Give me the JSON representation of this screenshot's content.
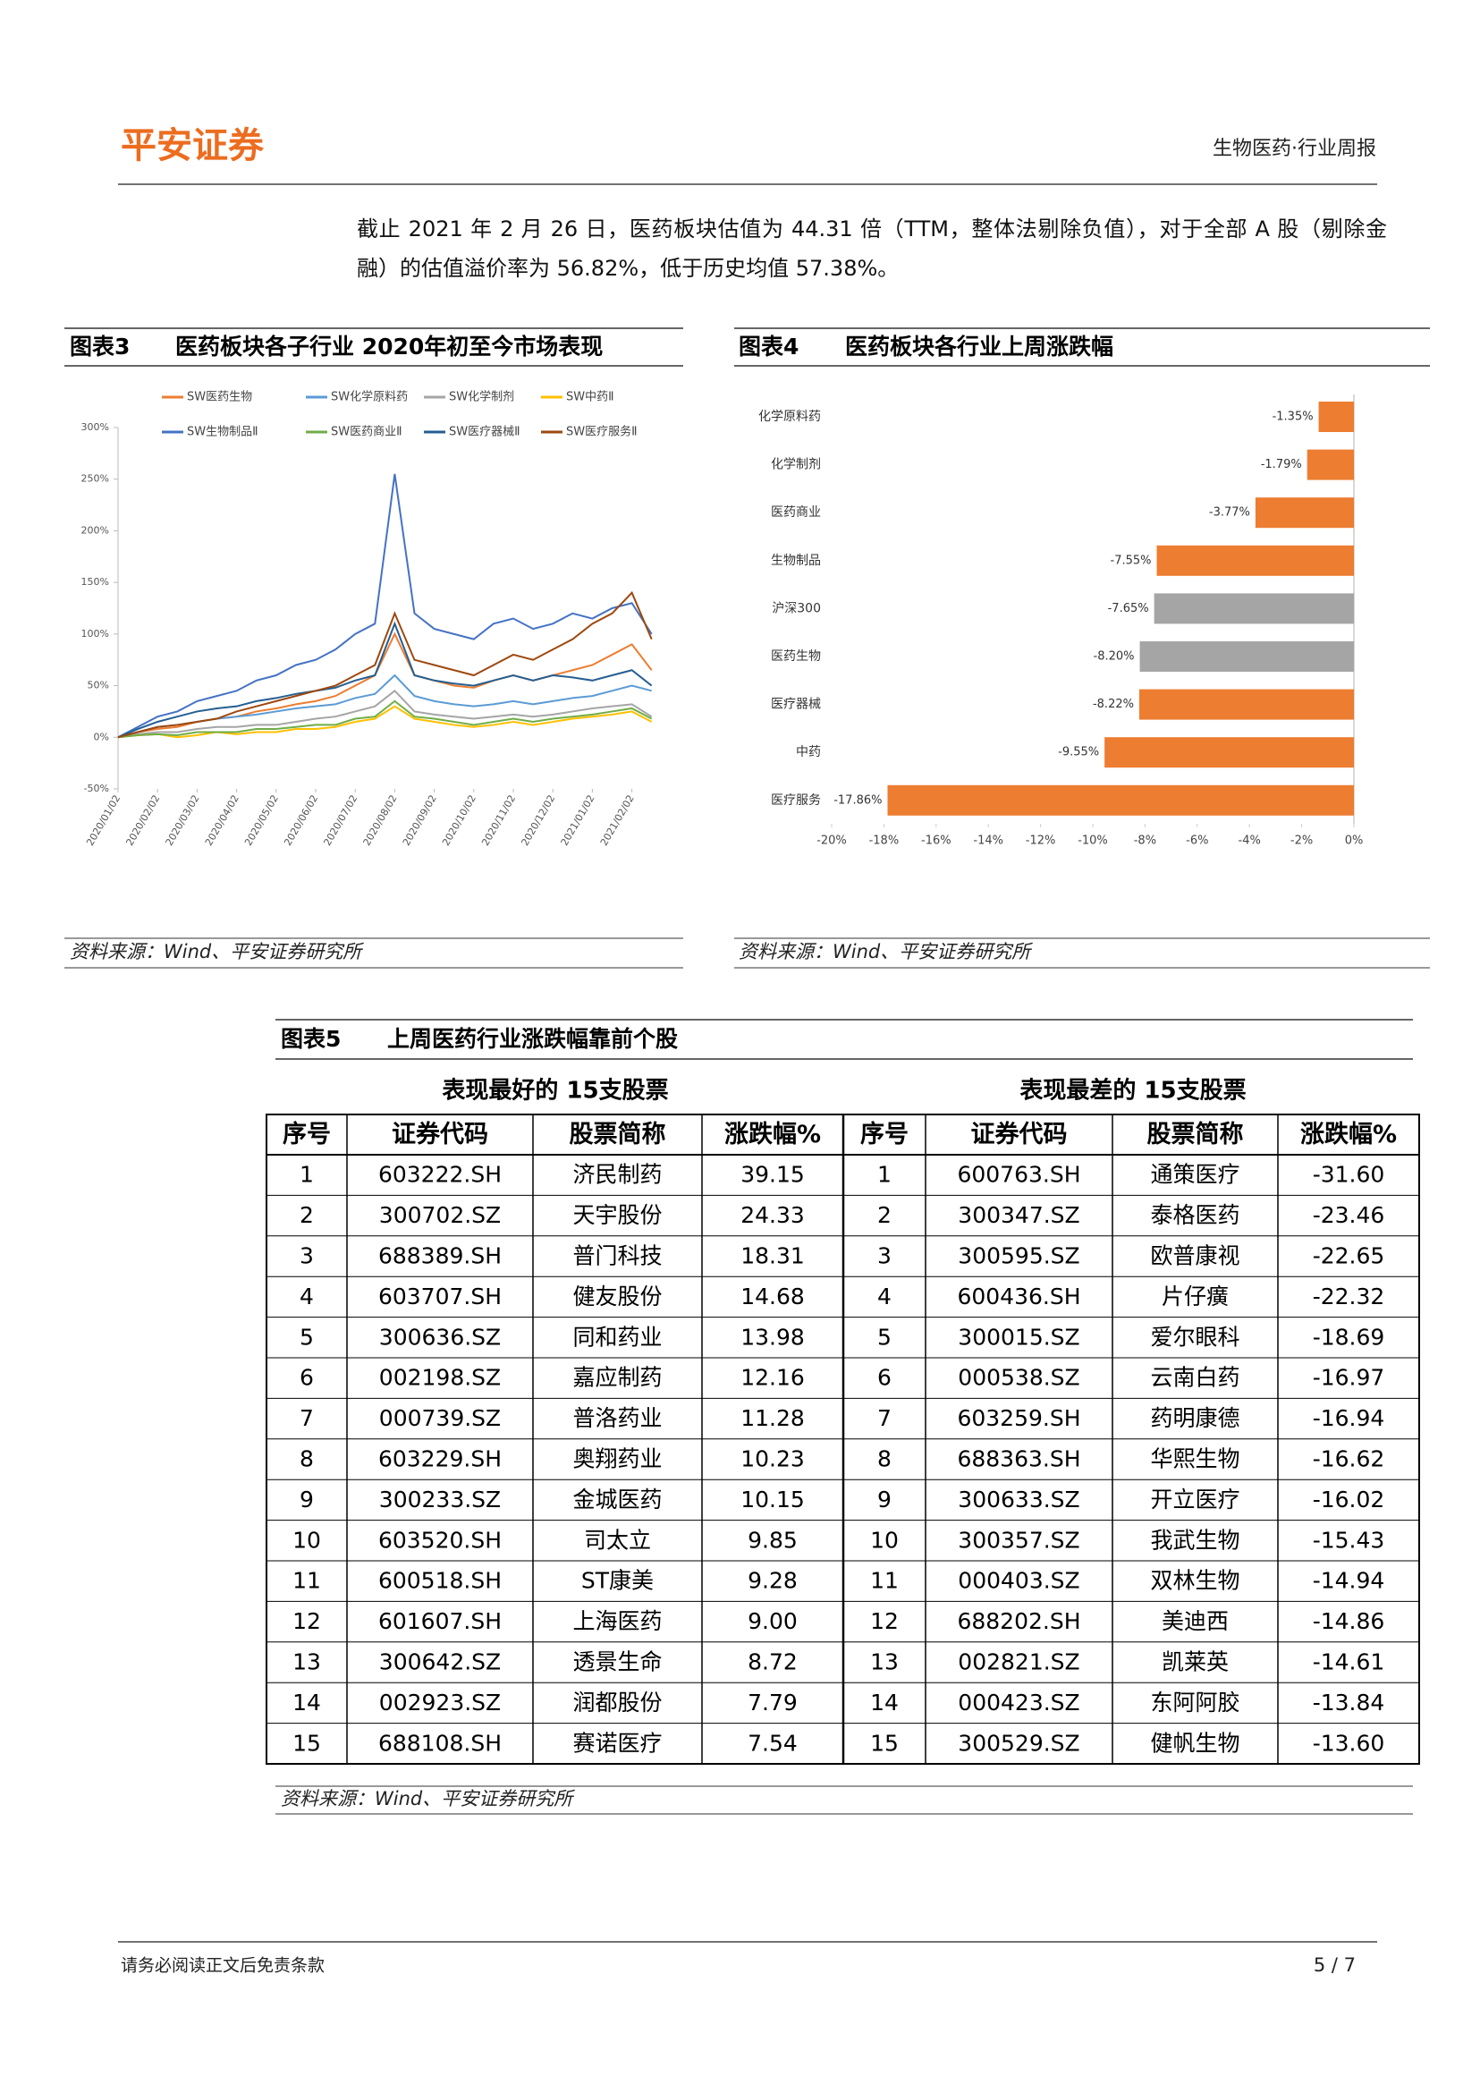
{
  "header": {
    "logo": "平安证券",
    "report": "生物医药·行业周报"
  },
  "paragraph": "截止 2021 年 2 月 26 日，医药板块估值为 44.31 倍（TTM，整体法剔除负值），对于全部 A 股（剔除金融）的估值溢价率为 56.82%，低于历史均值 57.38%。",
  "chart_data": [
    {
      "type": "line",
      "label": "图表3",
      "title": "医药板块各子行业 2020年初至今市场表现",
      "categories": [
        "2020/01/02",
        null,
        "2020/02/02",
        null,
        "2020/03/02",
        null,
        "2020/04/02",
        null,
        "2020/05/02",
        null,
        "2020/06/02",
        null,
        "2020/07/02",
        null,
        "2020/08/02",
        null,
        "2020/09/02",
        null,
        "2020/10/02",
        null,
        "2020/11/02",
        null,
        "2020/12/02",
        null,
        "2021/01/02",
        null,
        "2021/02/02",
        null
      ],
      "series": [
        {
          "name": "SW医药生物",
          "color": "#ed7d31",
          "values": [
            0,
            5,
            8,
            10,
            15,
            18,
            20,
            25,
            28,
            32,
            35,
            40,
            50,
            60,
            100,
            60,
            55,
            50,
            48,
            55,
            60,
            55,
            60,
            65,
            70,
            80,
            90,
            65
          ]
        },
        {
          "name": "SW化学原料药",
          "color": "#5b9bd5",
          "values": [
            0,
            5,
            10,
            12,
            15,
            18,
            20,
            22,
            25,
            28,
            30,
            32,
            38,
            42,
            60,
            40,
            35,
            32,
            30,
            32,
            35,
            32,
            35,
            38,
            40,
            45,
            50,
            45
          ]
        },
        {
          "name": "SW化学制剂",
          "color": "#a5a5a5",
          "values": [
            0,
            3,
            5,
            5,
            8,
            10,
            10,
            12,
            12,
            15,
            18,
            20,
            25,
            30,
            45,
            25,
            22,
            20,
            18,
            20,
            22,
            20,
            22,
            25,
            28,
            30,
            32,
            20
          ]
        },
        {
          "name": "SW中药Ⅱ",
          "color": "#ffc000",
          "values": [
            0,
            2,
            3,
            0,
            2,
            5,
            3,
            5,
            5,
            8,
            8,
            10,
            15,
            18,
            30,
            18,
            15,
            12,
            10,
            12,
            15,
            12,
            15,
            18,
            20,
            22,
            25,
            15
          ]
        },
        {
          "name": "SW生物制品Ⅱ",
          "color": "#4472c4",
          "values": [
            0,
            10,
            20,
            25,
            35,
            40,
            45,
            55,
            60,
            70,
            75,
            85,
            100,
            110,
            255,
            120,
            105,
            100,
            95,
            110,
            115,
            105,
            110,
            120,
            115,
            125,
            130,
            100
          ]
        },
        {
          "name": "SW医药商业Ⅱ",
          "color": "#70ad47",
          "values": [
            0,
            2,
            3,
            2,
            5,
            5,
            5,
            8,
            8,
            10,
            12,
            12,
            18,
            20,
            35,
            20,
            18,
            15,
            12,
            15,
            18,
            15,
            18,
            20,
            22,
            25,
            28,
            18
          ]
        },
        {
          "name": "SW医疗器械Ⅱ",
          "color": "#255e91",
          "values": [
            0,
            8,
            15,
            20,
            25,
            28,
            30,
            35,
            38,
            42,
            45,
            48,
            55,
            60,
            110,
            60,
            55,
            52,
            50,
            55,
            60,
            55,
            60,
            58,
            55,
            60,
            65,
            50
          ]
        },
        {
          "name": "SW医疗服务Ⅱ",
          "color": "#9e480e",
          "values": [
            0,
            5,
            10,
            12,
            15,
            18,
            25,
            30,
            35,
            40,
            45,
            50,
            60,
            70,
            120,
            75,
            70,
            65,
            60,
            70,
            80,
            75,
            85,
            95,
            110,
            120,
            140,
            95
          ]
        }
      ],
      "ylim": [
        -50,
        300
      ],
      "yticks": [
        {
          "value": -50,
          "label": "-50%"
        },
        {
          "value": 0,
          "label": "0%"
        },
        {
          "value": 50,
          "label": "50%"
        },
        {
          "value": 100,
          "label": "100%"
        },
        {
          "value": 150,
          "label": "150%"
        },
        {
          "value": 200,
          "label": "200%"
        },
        {
          "value": 250,
          "label": "250%"
        },
        {
          "value": 300,
          "label": "300%"
        }
      ],
      "source": "资料来源：Wind、平安证券研究所"
    },
    {
      "type": "barh",
      "label": "图表4",
      "title": "医药板块各行业上周涨跌幅",
      "categories": [
        "化学原料药",
        "化学制剂",
        "医药商业",
        "生物制品",
        "沪深300",
        "医药生物",
        "医疗器械",
        "中药",
        "医疗服务"
      ],
      "values": [
        -1.35,
        -1.79,
        -3.77,
        -7.55,
        -7.65,
        -8.2,
        -8.22,
        -9.55,
        -17.86
      ],
      "value_labels": [
        "-1.35%",
        "-1.79%",
        "-3.77%",
        "-7.55%",
        "-7.65%",
        "-8.20%",
        "-8.22%",
        "-9.55%",
        "-17.86%"
      ],
      "colors": [
        "#ed7d31",
        "#ed7d31",
        "#ed7d31",
        "#ed7d31",
        "#a5a5a5",
        "#a5a5a5",
        "#ed7d31",
        "#ed7d31",
        "#ed7d31"
      ],
      "xlim": [
        -20,
        0
      ],
      "xticks": [
        {
          "value": -20,
          "label": "-20%"
        },
        {
          "value": -18,
          "label": "-18%"
        },
        {
          "value": -16,
          "label": "-16%"
        },
        {
          "value": -14,
          "label": "-14%"
        },
        {
          "value": -12,
          "label": "-12%"
        },
        {
          "value": -10,
          "label": "-10%"
        },
        {
          "value": -8,
          "label": "-8%"
        },
        {
          "value": -6,
          "label": "-6%"
        },
        {
          "value": -4,
          "label": "-4%"
        },
        {
          "value": -2,
          "label": "-2%"
        },
        {
          "value": 0,
          "label": "0%"
        }
      ],
      "source": "资料来源：Wind、平安证券研究所"
    }
  ],
  "table": {
    "label": "图表5",
    "title": "上周医药行业涨跌幅靠前个股",
    "left_title": "表现最好的 15支股票",
    "right_title": "表现最差的 15支股票",
    "headers": [
      "序号",
      "证券代码",
      "股票简称",
      "涨跌幅%",
      "序号",
      "证券代码",
      "股票简称",
      "涨跌幅%"
    ],
    "rows": [
      [
        "1",
        "603222.SH",
        "济民制药",
        "39.15",
        "1",
        "600763.SH",
        "通策医疗",
        "-31.60"
      ],
      [
        "2",
        "300702.SZ",
        "天宇股份",
        "24.33",
        "2",
        "300347.SZ",
        "泰格医药",
        "-23.46"
      ],
      [
        "3",
        "688389.SH",
        "普门科技",
        "18.31",
        "3",
        "300595.SZ",
        "欧普康视",
        "-22.65"
      ],
      [
        "4",
        "603707.SH",
        "健友股份",
        "14.68",
        "4",
        "600436.SH",
        "片仔癀",
        "-22.32"
      ],
      [
        "5",
        "300636.SZ",
        "同和药业",
        "13.98",
        "5",
        "300015.SZ",
        "爱尔眼科",
        "-18.69"
      ],
      [
        "6",
        "002198.SZ",
        "嘉应制药",
        "12.16",
        "6",
        "000538.SZ",
        "云南白药",
        "-16.97"
      ],
      [
        "7",
        "000739.SZ",
        "普洛药业",
        "11.28",
        "7",
        "603259.SH",
        "药明康德",
        "-16.94"
      ],
      [
        "8",
        "603229.SH",
        "奥翔药业",
        "10.23",
        "8",
        "688363.SH",
        "华熙生物",
        "-16.62"
      ],
      [
        "9",
        "300233.SZ",
        "金城医药",
        "10.15",
        "9",
        "300633.SZ",
        "开立医疗",
        "-16.02"
      ],
      [
        "10",
        "603520.SH",
        "司太立",
        "9.85",
        "10",
        "300357.SZ",
        "我武生物",
        "-15.43"
      ],
      [
        "11",
        "600518.SH",
        "ST康美",
        "9.28",
        "11",
        "000403.SZ",
        "双林生物",
        "-14.94"
      ],
      [
        "12",
        "601607.SH",
        "上海医药",
        "9.00",
        "12",
        "688202.SH",
        "美迪西",
        "-14.86"
      ],
      [
        "13",
        "300642.SZ",
        "透景生命",
        "8.72",
        "13",
        "002821.SZ",
        "凯莱英",
        "-14.61"
      ],
      [
        "14",
        "002923.SZ",
        "润都股份",
        "7.79",
        "14",
        "000423.SZ",
        "东阿阿胶",
        "-13.84"
      ],
      [
        "15",
        "688108.SH",
        "赛诺医疗",
        "7.54",
        "15",
        "300529.SZ",
        "健帆生物",
        "-13.60"
      ]
    ],
    "source": "资料来源：Wind、平安证券研究所"
  },
  "footer": {
    "disclaimer": "请务必阅读正文后免责条款",
    "page": "5 / 7"
  }
}
